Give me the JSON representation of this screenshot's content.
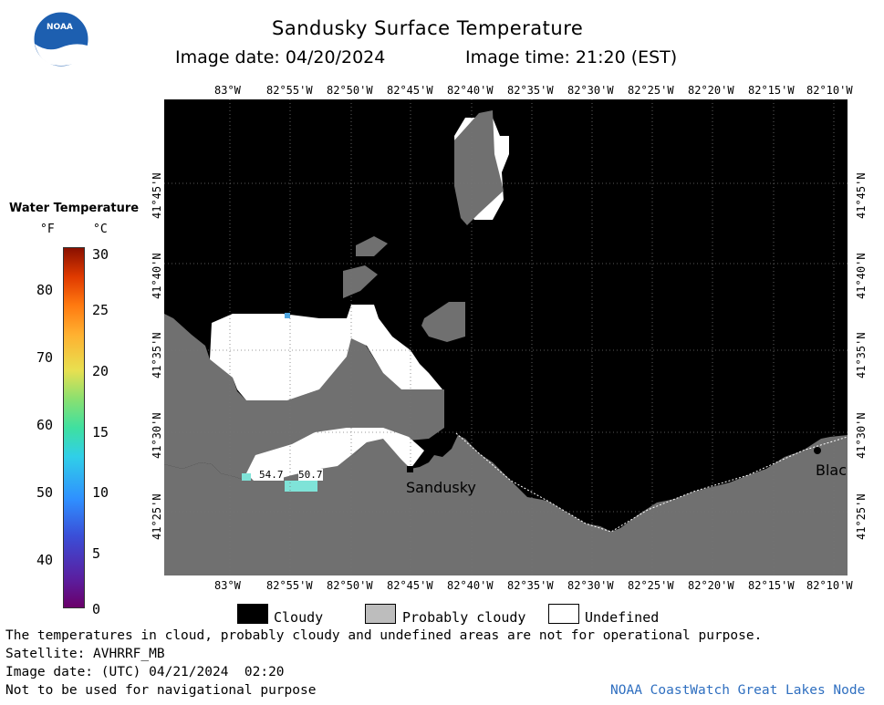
{
  "header": {
    "title": "Sandusky Surface Temperature",
    "image_date": "Image date: 04/20/2024",
    "image_time": "Image time: 21:20 (EST)",
    "logo_text": "NOAA"
  },
  "map": {
    "lon_labels": [
      "83°W",
      "82°55'W",
      "82°50'W",
      "82°45'W",
      "82°40'W",
      "82°35'W",
      "82°30'W",
      "82°25'W",
      "82°20'W",
      "82°15'W",
      "82°10'W"
    ],
    "lat_labels": [
      "41°45'N",
      "41°40'N",
      "41°35'N",
      "41°30'N",
      "41°25'N"
    ],
    "place_labels": [
      "Sandusky",
      "Blac"
    ],
    "temp_labels": [
      "54.7",
      "50.7"
    ],
    "colors": {
      "cloud": "#000000",
      "probably_cloudy": "#707070",
      "undefined": "#ffffff"
    }
  },
  "scale": {
    "title": "Water Temperature",
    "unit_f": "°F",
    "unit_c": "°C",
    "f_ticks": [
      "80",
      "70",
      "60",
      "50",
      "40"
    ],
    "c_ticks": [
      "30",
      "25",
      "20",
      "15",
      "10",
      "5",
      "0"
    ]
  },
  "legend": {
    "cloudy": "Cloudy",
    "probably_cloudy": "Probably cloudy",
    "undefined": "Undefined"
  },
  "footer": {
    "disclaimer": "The temperatures in cloud, probably cloudy and undefined areas are not for operational purpose.",
    "satellite": "Satellite: AVHRRF_MB",
    "utc_date": "Image date: (UTC) 04/21/2024  02:20",
    "nav_warning": "Not to be used for navigational purpose",
    "credit": "NOAA CoastWatch Great Lakes Node"
  }
}
